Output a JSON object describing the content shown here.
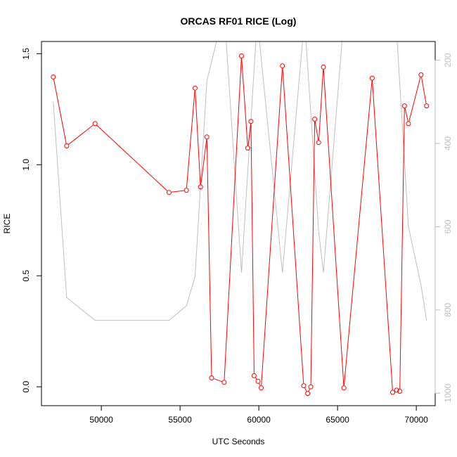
{
  "chart_data": {
    "type": "line",
    "title": "ORCAS RF01 RICE (Log)",
    "xlabel": "UTC Seconds",
    "ylabel": "RICE",
    "xlim": [
      46200,
      71200
    ],
    "ylim": [
      -0.085,
      1.555
    ],
    "x_ticks": [
      50000,
      55000,
      60000,
      65000,
      70000
    ],
    "x_tick_labels": [
      "50000",
      "55000",
      "60000",
      "65000",
      "70000"
    ],
    "y_ticks": [
      0.0,
      0.5,
      1.0,
      1.5
    ],
    "y_tick_labels": [
      "0.0",
      "0.5",
      "1.0",
      "1.5"
    ],
    "right_axis": {
      "ylim": [
        1030,
        155
      ],
      "ticks": [
        200,
        400,
        600,
        800,
        1000
      ],
      "tick_labels": [
        "200",
        "400",
        "600",
        "800",
        "1000"
      ],
      "color": "#bebebe"
    },
    "grid": false,
    "series": [
      {
        "color": "#ff0000",
        "marker": "circle-open",
        "x": [
          46950,
          47800,
          49600,
          54300,
          55400,
          55950,
          56300,
          56700,
          57000,
          57800,
          58900,
          59300,
          59500,
          59700,
          59950,
          60150,
          61500,
          62850,
          63100,
          63300,
          63550,
          63800,
          64100,
          65400,
          67200,
          68500,
          68750,
          68950,
          69250,
          69500,
          70300,
          70650
        ],
        "y": [
          1.395,
          1.085,
          1.185,
          0.875,
          0.885,
          1.345,
          0.9,
          1.125,
          0.04,
          0.02,
          1.49,
          1.075,
          1.195,
          0.05,
          0.025,
          -0.005,
          1.445,
          0.005,
          -0.03,
          0.0,
          1.205,
          1.1,
          1.44,
          -0.005,
          1.39,
          -0.025,
          -0.015,
          -0.02,
          1.265,
          1.185,
          1.405,
          1.265
        ]
      },
      {
        "color": "#bebebe",
        "axis": "right",
        "x": [
          46950,
          47800,
          49600,
          54300,
          55400,
          55950,
          56700,
          57800,
          58900,
          59900,
          61500,
          62900,
          63800,
          64100,
          65400,
          67200,
          68700,
          69500,
          70300,
          70650
        ],
        "y": [
          300,
          770,
          825,
          825,
          790,
          720,
          250,
          80,
          710,
          100,
          710,
          100,
          610,
          710,
          100,
          100,
          100,
          600,
          740,
          825
        ]
      }
    ]
  }
}
